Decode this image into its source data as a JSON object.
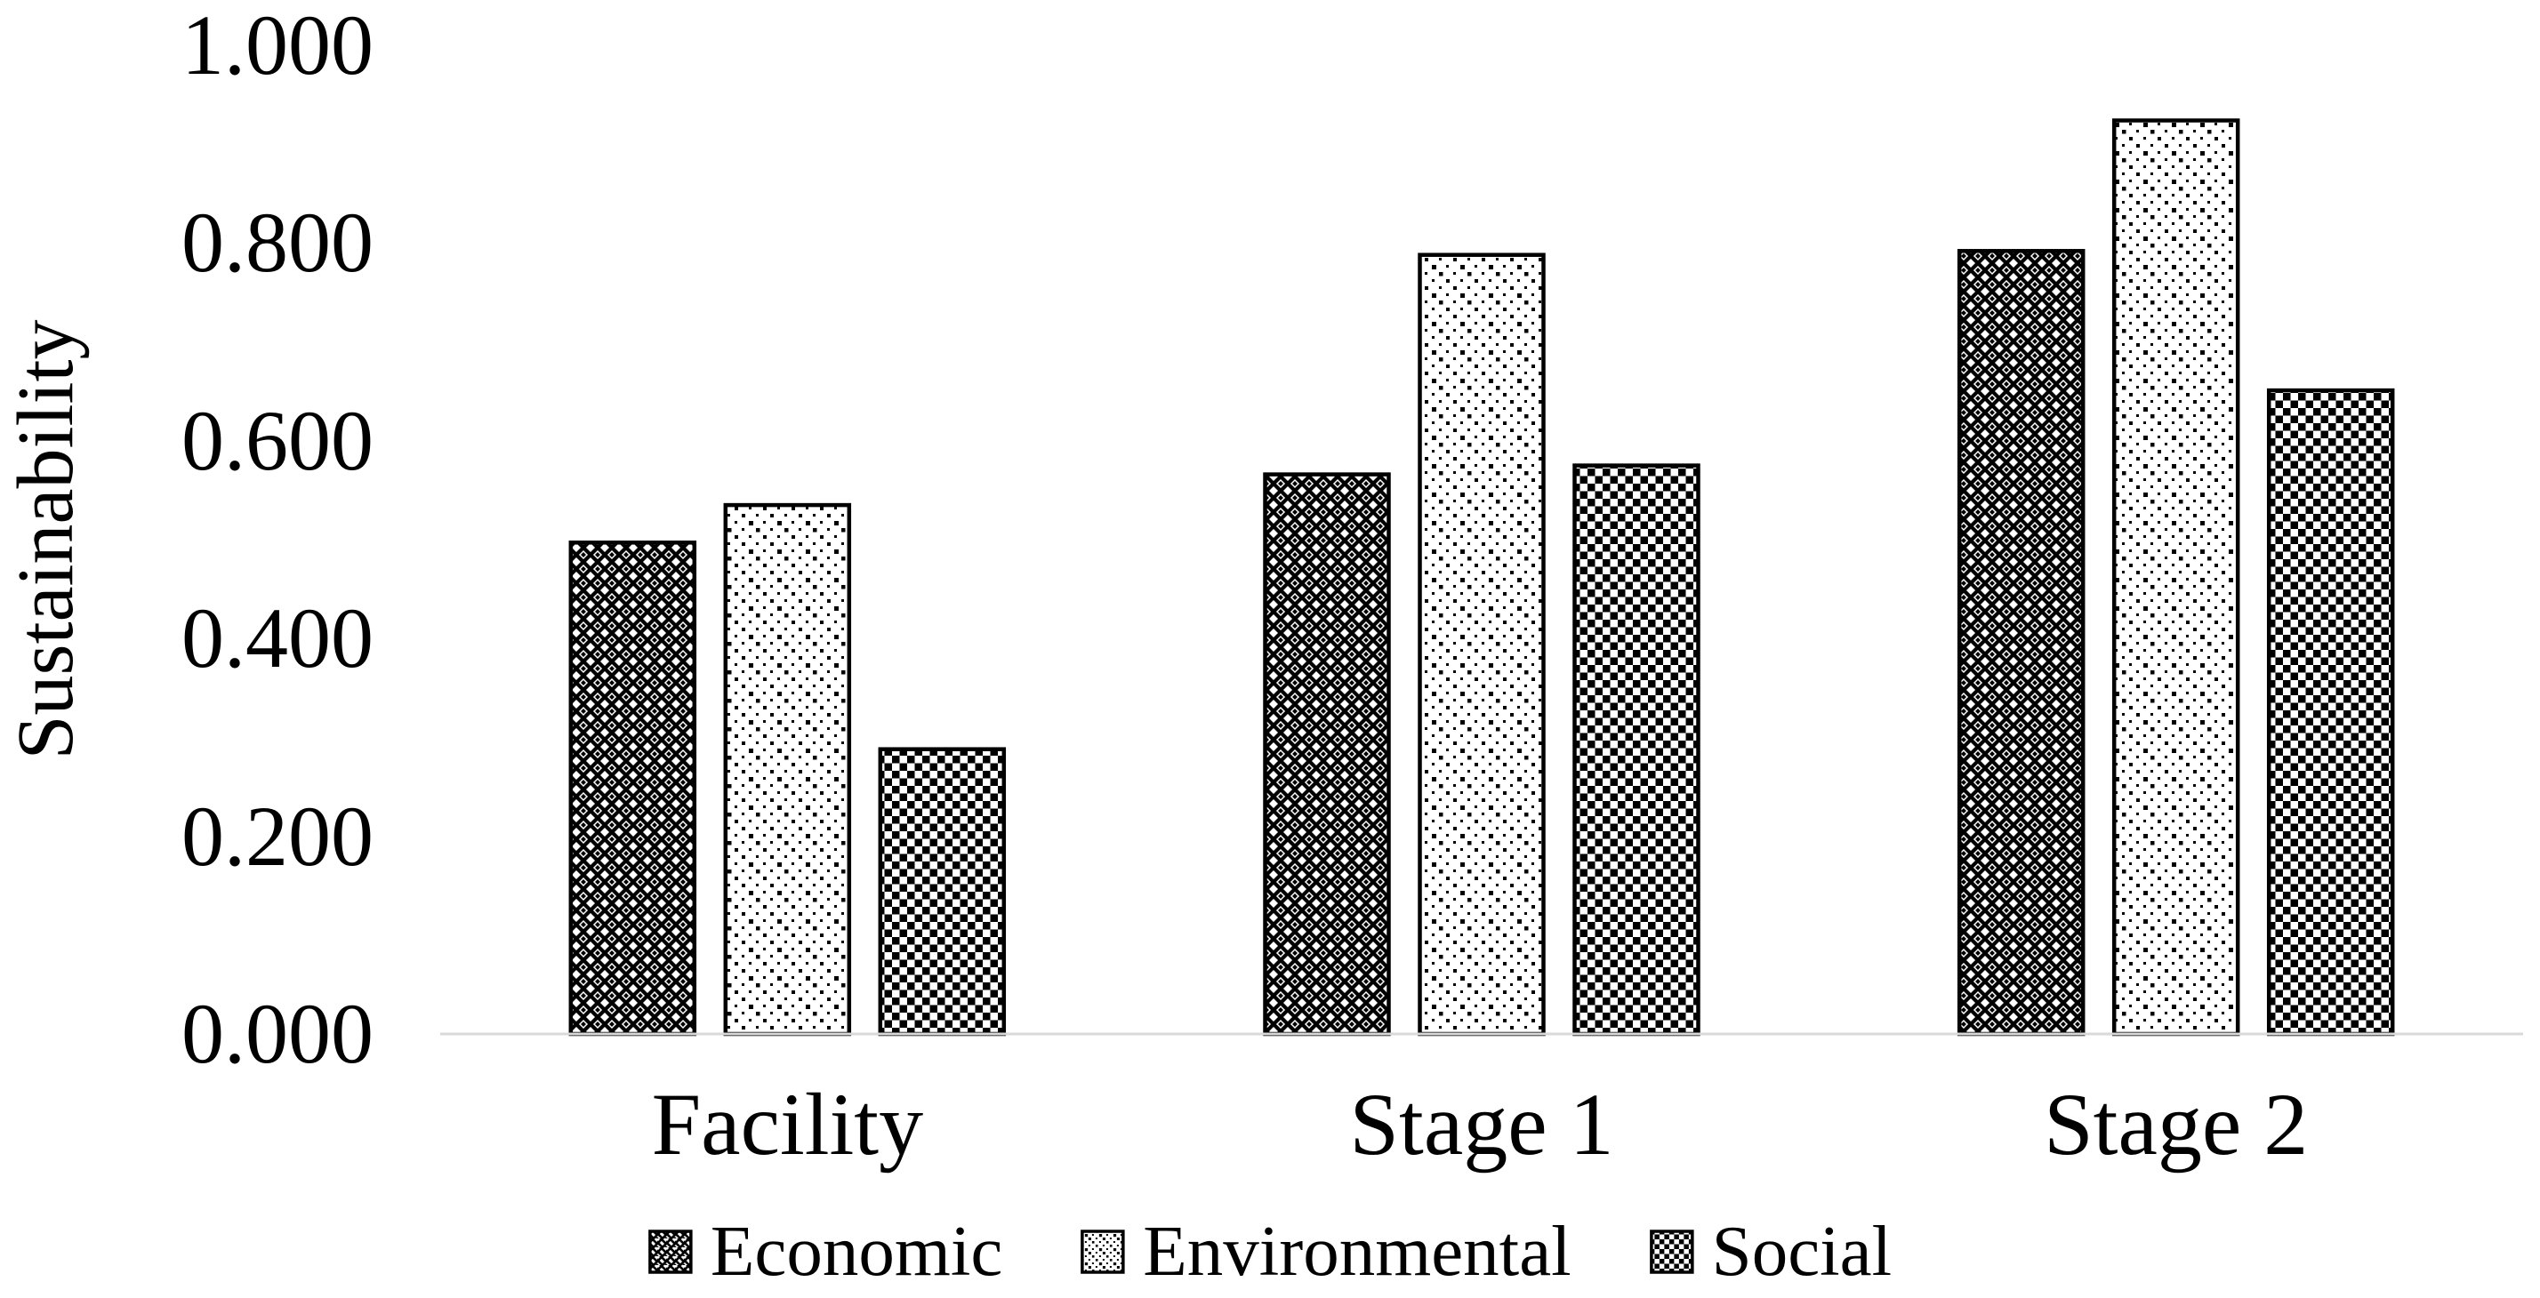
{
  "figure": {
    "background_color": "#ffffff",
    "text_color": "#000000",
    "axis_line_color": "#d9d9d9",
    "bar_fill_color": "#ffffff",
    "bar_stroke_color": "#000000"
  },
  "chart_data": {
    "type": "bar",
    "title": "",
    "xlabel": "",
    "ylabel": "Sustainability",
    "categories": [
      "Facility",
      "Stage 1",
      "Stage 2"
    ],
    "series": [
      {
        "name": "Economic",
        "pattern": "diagonal-crosshatch",
        "values": [
          0.497,
          0.566,
          0.792
        ]
      },
      {
        "name": "Environmental",
        "pattern": "dots",
        "values": [
          0.535,
          0.788,
          0.924
        ]
      },
      {
        "name": "Social",
        "pattern": "checkerboard",
        "values": [
          0.288,
          0.575,
          0.651
        ]
      }
    ],
    "ylim": [
      0.0,
      1.0
    ],
    "yticks": [
      "0.000",
      "0.200",
      "0.400",
      "0.600",
      "0.800",
      "1.000"
    ],
    "ytick_values": [
      0.0,
      0.2,
      0.4,
      0.6,
      0.8,
      1.0
    ],
    "grid": false,
    "legend_position": "bottom",
    "legend_items": [
      "Economic",
      "Environmental",
      "Social"
    ]
  }
}
